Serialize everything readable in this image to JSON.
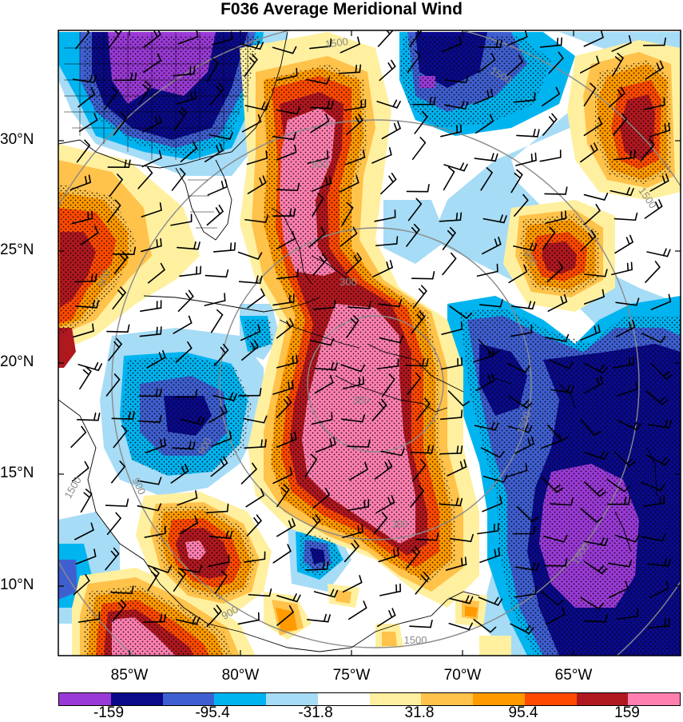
{
  "title": "F036 Average Meridional Wind",
  "lat_labels": [
    "30°N",
    "25°N",
    "20°N",
    "15°N",
    "10°N"
  ],
  "lon_labels": [
    "85°W",
    "80°W",
    "75°W",
    "70°W",
    "65°W"
  ],
  "range_ring_labels": [
    "1500",
    "900",
    "300",
    "900",
    "1500",
    "300",
    "900",
    "1500",
    "300",
    "1500",
    "900",
    "1500",
    "900",
    "1500",
    "1500",
    "900"
  ],
  "colorbar": {
    "colors": [
      "#9a3ad6",
      "#0a0a8a",
      "#3f5fd0",
      "#00b4f0",
      "#a6dcf6",
      "#ffffff",
      "#fff0a0",
      "#ffc24a",
      "#ff9a00",
      "#ff4a00",
      "#b01820",
      "#ff80b0"
    ],
    "labels": [
      "-159",
      "-95.4",
      "-31.8",
      "31.8",
      "95.4",
      "159"
    ]
  },
  "colors": {
    "coast": "#000000",
    "rings": "#8a8a8a",
    "stipple": "#000000"
  }
}
